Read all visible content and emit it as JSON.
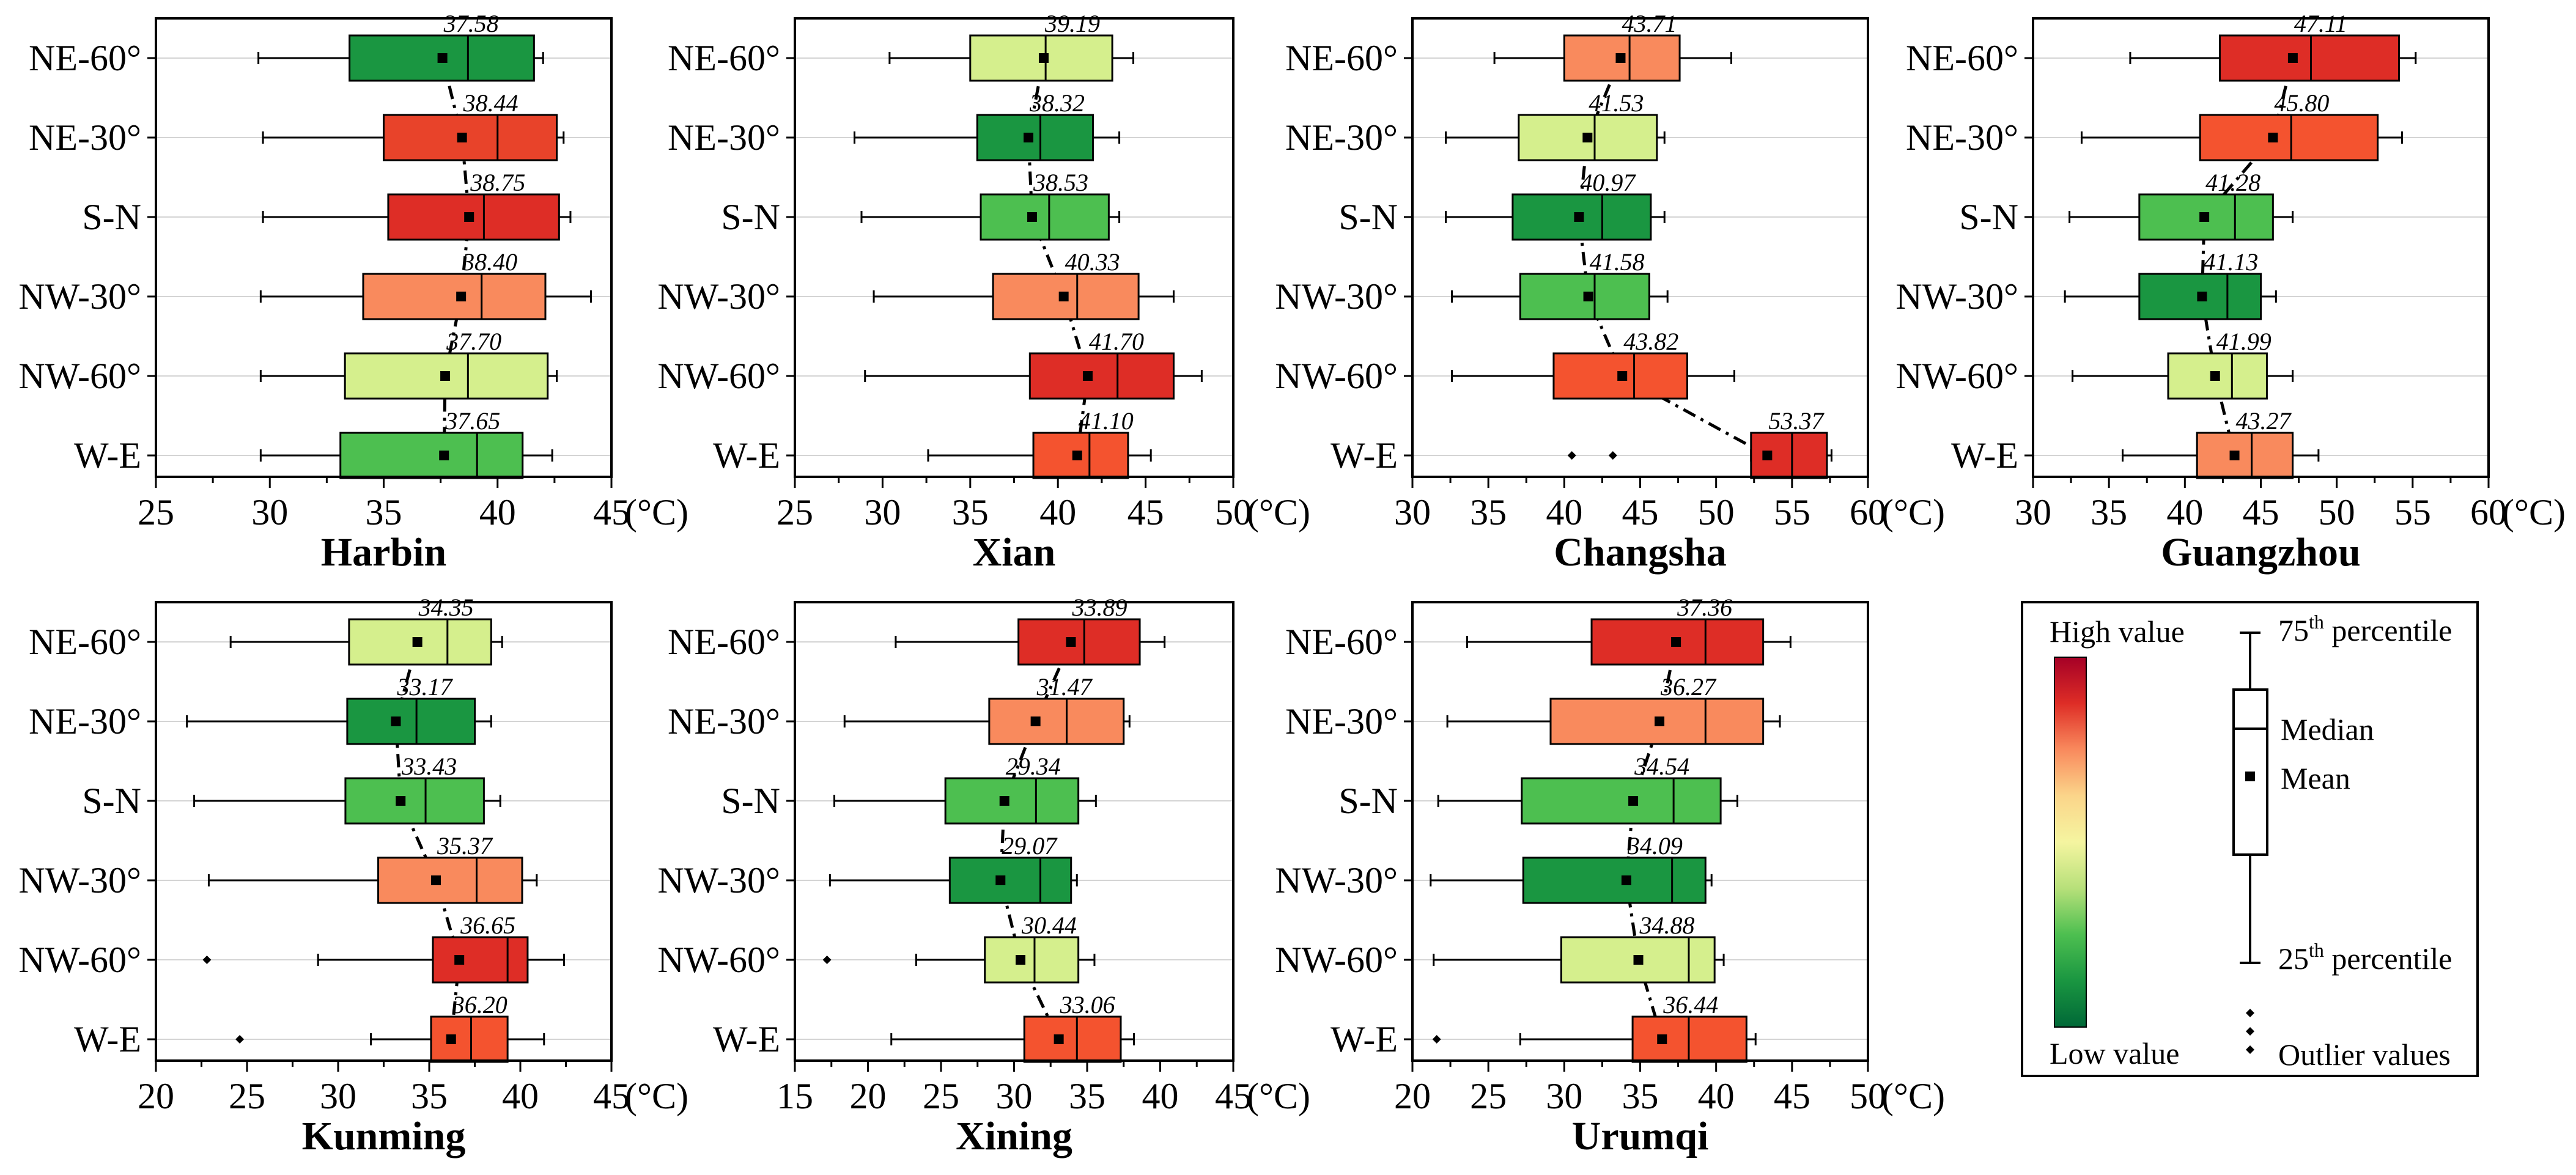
{
  "chart_data": [
    {
      "type": "boxplot",
      "title": "Harbin",
      "xunit": "(°C)",
      "xlim": [
        25,
        45
      ],
      "ticks": [
        "25",
        "30",
        "35",
        "40",
        "45"
      ],
      "categories": [
        "NE-60°",
        "NE-30°",
        "S-N",
        "NW-30°",
        "NW-60°",
        "W-E"
      ],
      "boxes": [
        {
          "min": 29.5,
          "q1": 33.5,
          "median": 38.7,
          "q3": 41.6,
          "max": 42.0,
          "mean": 37.58,
          "mean_label": "37.58",
          "color": "#1a9641",
          "outliers": []
        },
        {
          "min": 29.7,
          "q1": 35.0,
          "median": 40.0,
          "q3": 42.6,
          "max": 42.9,
          "mean": 38.44,
          "mean_label": "38.44",
          "color": "#e8432a",
          "outliers": []
        },
        {
          "min": 29.7,
          "q1": 35.2,
          "median": 39.4,
          "q3": 42.7,
          "max": 43.2,
          "mean": 38.75,
          "mean_label": "38.75",
          "color": "#de2d26",
          "outliers": []
        },
        {
          "min": 29.6,
          "q1": 34.1,
          "median": 39.3,
          "q3": 42.1,
          "max": 44.1,
          "mean": 38.4,
          "mean_label": "38.40",
          "color": "#f98a5d",
          "outliers": []
        },
        {
          "min": 29.6,
          "q1": 33.3,
          "median": 38.7,
          "q3": 42.2,
          "max": 42.6,
          "mean": 37.7,
          "mean_label": "37.70",
          "color": "#d5ef8d",
          "outliers": []
        },
        {
          "min": 29.6,
          "q1": 33.1,
          "median": 39.1,
          "q3": 41.1,
          "max": 42.4,
          "mean": 37.65,
          "mean_label": "37.65",
          "color": "#4dbf50",
          "outliers": []
        }
      ]
    },
    {
      "type": "boxplot",
      "title": "Xian",
      "xunit": "(°C)",
      "xlim": [
        25,
        50
      ],
      "ticks": [
        "25",
        "30",
        "35",
        "40",
        "45",
        "50"
      ],
      "categories": [
        "NE-60°",
        "NE-30°",
        "S-N",
        "NW-30°",
        "NW-60°",
        "W-E"
      ],
      "boxes": [
        {
          "min": 30.4,
          "q1": 35.0,
          "median": 39.3,
          "q3": 43.1,
          "max": 44.3,
          "mean": 39.19,
          "mean_label": "39.19",
          "color": "#d5ef8d",
          "outliers": []
        },
        {
          "min": 28.4,
          "q1": 35.4,
          "median": 39.0,
          "q3": 42.0,
          "max": 43.5,
          "mean": 38.32,
          "mean_label": "38.32",
          "color": "#1a9641",
          "outliers": []
        },
        {
          "min": 28.8,
          "q1": 35.6,
          "median": 39.5,
          "q3": 42.9,
          "max": 43.5,
          "mean": 38.53,
          "mean_label": "38.53",
          "color": "#4dbf50",
          "outliers": []
        },
        {
          "min": 29.5,
          "q1": 36.3,
          "median": 41.1,
          "q3": 44.6,
          "max": 46.6,
          "mean": 40.33,
          "mean_label": "40.33",
          "color": "#f98a5d",
          "outliers": []
        },
        {
          "min": 29.0,
          "q1": 38.4,
          "median": 43.4,
          "q3": 46.6,
          "max": 48.2,
          "mean": 41.7,
          "mean_label": "41.70",
          "color": "#de2d26",
          "outliers": []
        },
        {
          "min": 32.6,
          "q1": 38.6,
          "median": 41.8,
          "q3": 44.0,
          "max": 45.3,
          "mean": 41.1,
          "mean_label": "41.10",
          "color": "#f4532f",
          "outliers": []
        }
      ]
    },
    {
      "type": "boxplot",
      "title": "Changsha",
      "xunit": "(°C)",
      "xlim": [
        30,
        60
      ],
      "ticks": [
        "30",
        "35",
        "40",
        "45",
        "50",
        "55",
        "60"
      ],
      "categories": [
        "NE-60°",
        "NE-30°",
        "S-N",
        "NW-30°",
        "NW-60°",
        "W-E"
      ],
      "boxes": [
        {
          "min": 35.4,
          "q1": 40.0,
          "median": 44.3,
          "q3": 47.6,
          "max": 51.0,
          "mean": 43.71,
          "mean_label": "43.71",
          "color": "#f98a5d",
          "outliers": []
        },
        {
          "min": 32.2,
          "q1": 37.0,
          "median": 42.0,
          "q3": 46.1,
          "max": 46.6,
          "mean": 41.53,
          "mean_label": "41.53",
          "color": "#d5ef8d",
          "outliers": []
        },
        {
          "min": 32.2,
          "q1": 36.6,
          "median": 42.5,
          "q3": 45.7,
          "max": 46.6,
          "mean": 40.97,
          "mean_label": "40.97",
          "color": "#1a9641",
          "outliers": []
        },
        {
          "min": 32.6,
          "q1": 37.1,
          "median": 42.0,
          "q3": 45.6,
          "max": 46.8,
          "mean": 41.58,
          "mean_label": "41.58",
          "color": "#4dbf50",
          "outliers": []
        },
        {
          "min": 32.6,
          "q1": 39.3,
          "median": 44.6,
          "q3": 48.1,
          "max": 51.2,
          "mean": 43.82,
          "mean_label": "43.82",
          "color": "#f4532f",
          "outliers": []
        },
        {
          "min": 52.3,
          "q1": 52.3,
          "median": 55.0,
          "q3": 57.3,
          "max": 57.6,
          "mean": 53.37,
          "mean_label": "53.37",
          "color": "#de2d26",
          "outliers": [
            40.5,
            43.2
          ]
        }
      ]
    },
    {
      "type": "boxplot",
      "title": "Guangzhou",
      "xunit": "(°C)",
      "xlim": [
        30,
        60
      ],
      "ticks": [
        "30",
        "35",
        "40",
        "45",
        "50",
        "55",
        "60"
      ],
      "categories": [
        "NE-60°",
        "NE-30°",
        "S-N",
        "NW-30°",
        "NW-60°",
        "W-E"
      ],
      "boxes": [
        {
          "min": 36.4,
          "q1": 42.3,
          "median": 48.3,
          "q3": 54.1,
          "max": 55.2,
          "mean": 47.11,
          "mean_label": "47.11",
          "color": "#de2d26",
          "outliers": []
        },
        {
          "min": 33.2,
          "q1": 41.0,
          "median": 47.0,
          "q3": 52.7,
          "max": 54.3,
          "mean": 45.8,
          "mean_label": "45.80",
          "color": "#f4532f",
          "outliers": []
        },
        {
          "min": 32.4,
          "q1": 37.0,
          "median": 43.3,
          "q3": 45.8,
          "max": 47.1,
          "mean": 41.28,
          "mean_label": "41.28",
          "color": "#4dbf50",
          "outliers": []
        },
        {
          "min": 32.1,
          "q1": 37.0,
          "median": 42.8,
          "q3": 45.0,
          "max": 46.0,
          "mean": 41.13,
          "mean_label": "41.13",
          "color": "#1a9641",
          "outliers": []
        },
        {
          "min": 32.6,
          "q1": 38.9,
          "median": 43.1,
          "q3": 45.4,
          "max": 47.1,
          "mean": 41.99,
          "mean_label": "41.99",
          "color": "#d5ef8d",
          "outliers": []
        },
        {
          "min": 35.9,
          "q1": 40.8,
          "median": 44.4,
          "q3": 47.1,
          "max": 48.8,
          "mean": 43.27,
          "mean_label": "43.27",
          "color": "#f98a5d",
          "outliers": []
        }
      ]
    },
    {
      "type": "boxplot",
      "title": "Kunming",
      "xunit": "(°C)",
      "xlim": [
        20,
        45
      ],
      "ticks": [
        "20",
        "25",
        "30",
        "35",
        "40",
        "45"
      ],
      "categories": [
        "NE-60°",
        "NE-30°",
        "S-N",
        "NW-30°",
        "NW-60°",
        "W-E"
      ],
      "boxes": [
        {
          "min": 24.1,
          "q1": 30.6,
          "median": 36.0,
          "q3": 38.4,
          "max": 39.0,
          "mean": 34.35,
          "mean_label": "34.35",
          "color": "#d5ef8d",
          "outliers": []
        },
        {
          "min": 21.7,
          "q1": 30.5,
          "median": 34.3,
          "q3": 37.5,
          "max": 38.4,
          "mean": 33.17,
          "mean_label": "33.17",
          "color": "#1a9641",
          "outliers": []
        },
        {
          "min": 22.1,
          "q1": 30.4,
          "median": 34.8,
          "q3": 38.0,
          "max": 38.9,
          "mean": 33.43,
          "mean_label": "33.43",
          "color": "#4dbf50",
          "outliers": []
        },
        {
          "min": 22.9,
          "q1": 32.2,
          "median": 37.6,
          "q3": 40.1,
          "max": 40.9,
          "mean": 35.37,
          "mean_label": "35.37",
          "color": "#f98a5d",
          "outliers": []
        },
        {
          "min": 28.9,
          "q1": 35.2,
          "median": 39.3,
          "q3": 40.4,
          "max": 42.4,
          "mean": 36.65,
          "mean_label": "36.65",
          "color": "#de2d26",
          "outliers": [
            22.8
          ]
        },
        {
          "min": 31.8,
          "q1": 35.1,
          "median": 37.3,
          "q3": 39.3,
          "max": 41.3,
          "mean": 36.2,
          "mean_label": "36.20",
          "color": "#f4532f",
          "outliers": [
            24.6
          ]
        }
      ]
    },
    {
      "type": "boxplot",
      "title": "Xining",
      "xunit": "(°C)",
      "xlim": [
        15,
        45
      ],
      "ticks": [
        "15",
        "20",
        "25",
        "30",
        "35",
        "40",
        "45"
      ],
      "categories": [
        "NE-60°",
        "NE-30°",
        "S-N",
        "NW-30°",
        "NW-60°",
        "W-E"
      ],
      "boxes": [
        {
          "min": 21.9,
          "q1": 30.3,
          "median": 34.8,
          "q3": 38.6,
          "max": 40.3,
          "mean": 33.89,
          "mean_label": "33.89",
          "color": "#de2d26",
          "outliers": []
        },
        {
          "min": 18.4,
          "q1": 28.3,
          "median": 33.6,
          "q3": 37.5,
          "max": 37.9,
          "mean": 31.47,
          "mean_label": "31.47",
          "color": "#f98a5d",
          "outliers": []
        },
        {
          "min": 17.7,
          "q1": 25.3,
          "median": 31.5,
          "q3": 34.4,
          "max": 35.6,
          "mean": 29.34,
          "mean_label": "29.34",
          "color": "#4dbf50",
          "outliers": []
        },
        {
          "min": 17.4,
          "q1": 25.6,
          "median": 31.8,
          "q3": 33.9,
          "max": 34.3,
          "mean": 29.07,
          "mean_label": "29.07",
          "color": "#1a9641",
          "outliers": []
        },
        {
          "min": 23.3,
          "q1": 28.0,
          "median": 31.4,
          "q3": 34.4,
          "max": 35.5,
          "mean": 30.44,
          "mean_label": "30.44",
          "color": "#d5ef8d",
          "outliers": [
            17.2
          ]
        },
        {
          "min": 21.6,
          "q1": 30.7,
          "median": 34.3,
          "q3": 37.3,
          "max": 38.2,
          "mean": 33.06,
          "mean_label": "33.06",
          "color": "#f4532f",
          "outliers": []
        }
      ]
    },
    {
      "type": "boxplot",
      "title": "Urumqi",
      "xunit": "(°C)",
      "xlim": [
        20,
        50
      ],
      "ticks": [
        "20",
        "25",
        "30",
        "35",
        "40",
        "45",
        "50"
      ],
      "categories": [
        "NE-60°",
        "NE-30°",
        "S-N",
        "NW-30°",
        "NW-60°",
        "W-E"
      ],
      "boxes": [
        {
          "min": 23.6,
          "q1": 31.8,
          "median": 39.3,
          "q3": 43.1,
          "max": 44.9,
          "mean": 37.36,
          "mean_label": "37.36",
          "color": "#de2d26",
          "outliers": []
        },
        {
          "min": 22.3,
          "q1": 29.1,
          "median": 39.3,
          "q3": 43.1,
          "max": 44.2,
          "mean": 36.27,
          "mean_label": "36.27",
          "color": "#f98a5d",
          "outliers": []
        },
        {
          "min": 21.7,
          "q1": 27.2,
          "median": 37.2,
          "q3": 40.3,
          "max": 41.4,
          "mean": 34.54,
          "mean_label": "34.54",
          "color": "#4dbf50",
          "outliers": []
        },
        {
          "min": 21.2,
          "q1": 27.3,
          "median": 37.1,
          "q3": 39.3,
          "max": 39.7,
          "mean": 34.09,
          "mean_label": "34.09",
          "color": "#1a9641",
          "outliers": []
        },
        {
          "min": 21.4,
          "q1": 29.8,
          "median": 38.2,
          "q3": 39.9,
          "max": 40.5,
          "mean": 34.88,
          "mean_label": "34.88",
          "color": "#d5ef8d",
          "outliers": []
        },
        {
          "min": 27.1,
          "q1": 34.5,
          "median": 38.2,
          "q3": 42.0,
          "max": 42.6,
          "mean": 36.44,
          "mean_label": "36.44",
          "color": "#f4532f",
          "outliers": [
            21.6
          ]
        }
      ]
    }
  ],
  "legend": {
    "high": "High value",
    "low": "Low value",
    "p75_base": "75",
    "p75_sup": "th",
    "p75_rest": " percentile",
    "p25_base": "25",
    "p25_sup": "th",
    "p25_rest": " percentile",
    "median": "Median",
    "mean": "Mean",
    "outliers": "Outlier values",
    "gradient": [
      "#a50026",
      "#de2d26",
      "#f98a5d",
      "#fbd58a",
      "#f5f5a0",
      "#b7e07a",
      "#4dbf50",
      "#1a9641",
      "#006837"
    ]
  }
}
